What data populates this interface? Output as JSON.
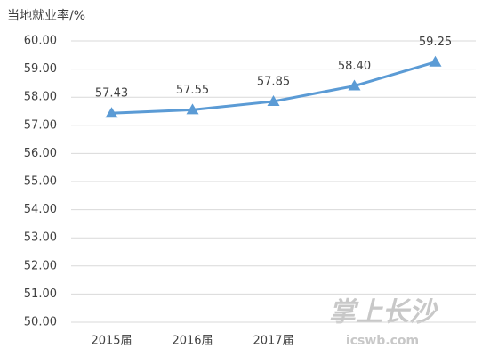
{
  "chart_data": {
    "type": "line",
    "y_label": "当地就业率/%",
    "categories": [
      "2015届",
      "2016届",
      "2017届",
      null,
      null
    ],
    "series": [
      {
        "name": null,
        "color": "#5b9bd5",
        "values": [
          57.43,
          57.55,
          57.85,
          58.4,
          59.25
        ],
        "value_labels": [
          "57.43",
          "57.55",
          "57.85",
          "58.40",
          "59.25"
        ]
      }
    ],
    "ylim": [
      50,
      60
    ],
    "yticks": [
      {
        "value": 50,
        "label": "50.00"
      },
      {
        "value": 51,
        "label": "51.00"
      },
      {
        "value": 52,
        "label": "52.00"
      },
      {
        "value": 53,
        "label": "53.00"
      },
      {
        "value": 54,
        "label": "54.00"
      },
      {
        "value": 55,
        "label": "55.00"
      },
      {
        "value": 56,
        "label": "56.00"
      },
      {
        "value": 57,
        "label": "57.00"
      },
      {
        "value": 58,
        "label": "58.00"
      },
      {
        "value": 59,
        "label": "59.00"
      },
      {
        "value": 60,
        "label": "60.00"
      }
    ],
    "grid": true,
    "watermark": [
      "掌上长沙",
      "icswb.com"
    ]
  }
}
